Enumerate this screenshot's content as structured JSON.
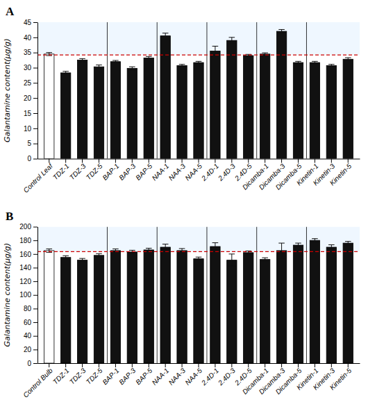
{
  "chart_data": [
    {
      "type": "bar",
      "title": "A",
      "ylabel": "Galantamine content(μg/g)",
      "categories": [
        "Control Leaf",
        "TDZ-1",
        "TDZ-3",
        "TDZ-5",
        "BAP-1",
        "BAP-3",
        "BAP-5",
        "NAA-1",
        "NAA-3",
        "NAA-5",
        "2.4D-1",
        "2.4D-3",
        "2.4D-5",
        "Dicamba-1",
        "Dicamba-3",
        "Dicamba-5",
        "Kinetin-1",
        "Kinetin-3",
        "Kinetin-5"
      ],
      "values": [
        34.5,
        28.3,
        32.5,
        30.3,
        32.0,
        29.8,
        33.2,
        40.5,
        30.7,
        31.7,
        35.5,
        39.0,
        34.0,
        34.5,
        42.0,
        31.7,
        31.7,
        30.7,
        32.8
      ],
      "errors": [
        0.5,
        0.5,
        0.5,
        0.6,
        0.4,
        0.5,
        0.5,
        0.9,
        0.4,
        0.4,
        1.6,
        1.0,
        0.4,
        0.4,
        0.6,
        0.4,
        0.4,
        0.4,
        0.5
      ],
      "colors": [
        "#ffffff",
        "#111111",
        "#111111",
        "#111111",
        "#111111",
        "#111111",
        "#111111",
        "#111111",
        "#111111",
        "#111111",
        "#111111",
        "#111111",
        "#111111",
        "#111111",
        "#111111",
        "#111111",
        "#111111",
        "#111111",
        "#111111"
      ],
      "reference_line": {
        "value": 34.2,
        "color": "#cc0000",
        "line_style": "dashed"
      },
      "ylim": [
        0,
        45
      ],
      "yticks": [
        0,
        5,
        10,
        15,
        20,
        25,
        30,
        35,
        40,
        45
      ],
      "grid": false
    },
    {
      "type": "bar",
      "title": "B",
      "ylabel": "Galantamine content(μg/g)",
      "categories": [
        "Control Bulb",
        "TDZ-1",
        "TDZ-3",
        "TDZ-5",
        "BAP-1",
        "BAP-3",
        "BAP-5",
        "NAA-1",
        "NAA-3",
        "NAA-5",
        "2.4D-1",
        "2.4D-3",
        "2.4D-5",
        "Dicamba-1",
        "Dicamba-3",
        "Dicamba-5",
        "Kinetin-1",
        "Kinetin-3",
        "Kinetin-5"
      ],
      "values": [
        165.0,
        155.0,
        151.0,
        158.0,
        165.0,
        163.0,
        166.0,
        170.0,
        165.0,
        153.0,
        171.0,
        151.0,
        162.0,
        152.0,
        165.0,
        173.0,
        180.0,
        170.0,
        176.0
      ],
      "errors": [
        2.5,
        2.5,
        2.5,
        2.5,
        2.5,
        2.5,
        2.5,
        4.5,
        3.0,
        2.5,
        5.5,
        9.0,
        2.5,
        2.5,
        11.0,
        3.0,
        2.5,
        3.5,
        2.5
      ],
      "colors": [
        "#ffffff",
        "#111111",
        "#111111",
        "#111111",
        "#111111",
        "#111111",
        "#111111",
        "#111111",
        "#111111",
        "#111111",
        "#111111",
        "#111111",
        "#111111",
        "#111111",
        "#111111",
        "#111111",
        "#111111",
        "#111111",
        "#111111"
      ],
      "reference_line": {
        "value": 163.5,
        "color": "#cc0000",
        "line_style": "dashed"
      },
      "ylim": [
        0,
        200
      ],
      "yticks": [
        0,
        20,
        40,
        60,
        80,
        100,
        120,
        140,
        160,
        180,
        200
      ],
      "grid": false
    }
  ]
}
